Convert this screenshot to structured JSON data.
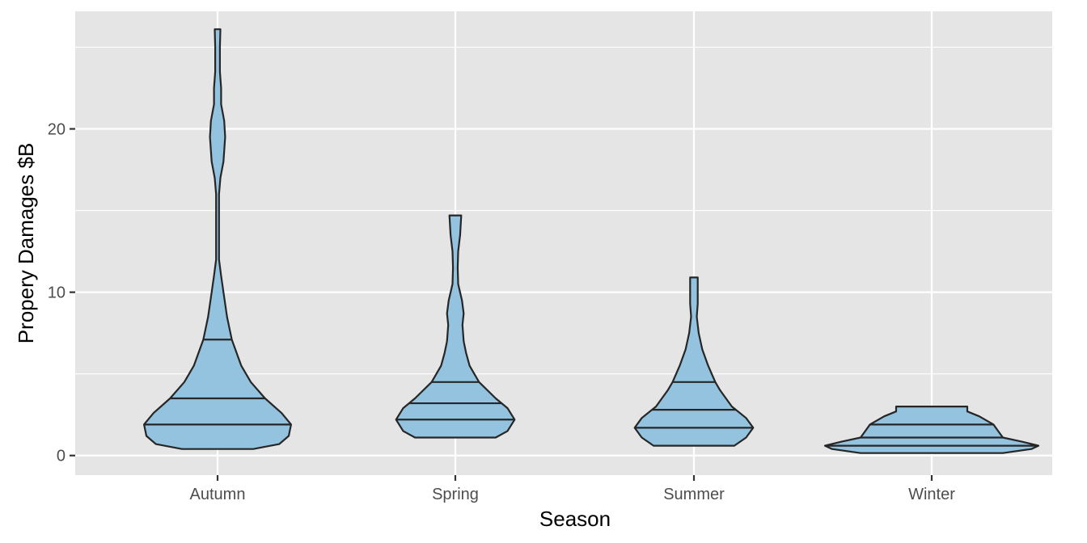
{
  "chart_data": {
    "type": "violin",
    "xlabel": "Season",
    "ylabel": "Propery Damages $B",
    "categories": [
      "Autumn",
      "Spring",
      "Summer",
      "Winter"
    ],
    "ylim": [
      -1.2,
      27.2
    ],
    "yticks": [
      0,
      10,
      20
    ],
    "grid": true,
    "legend": "none",
    "colors": {
      "fill": "#93c3df",
      "stroke": "#262626",
      "panel": "#e5e5e5",
      "grid": "#ffffff"
    },
    "violins": [
      {
        "category": "Autumn",
        "quantiles": [
          1.9,
          3.5,
          7.1
        ],
        "profile": [
          [
            0.4,
            0.15
          ],
          [
            0.7,
            0.26
          ],
          [
            1.2,
            0.3
          ],
          [
            1.9,
            0.31
          ],
          [
            2.6,
            0.27
          ],
          [
            3.5,
            0.2
          ],
          [
            4.5,
            0.14
          ],
          [
            5.5,
            0.1
          ],
          [
            7.1,
            0.06
          ],
          [
            8.5,
            0.04
          ],
          [
            10.0,
            0.025
          ],
          [
            11.0,
            0.015
          ],
          [
            12.0,
            0.006
          ],
          [
            16.0,
            0.006
          ],
          [
            17.0,
            0.012
          ],
          [
            18.0,
            0.025
          ],
          [
            19.5,
            0.032
          ],
          [
            20.5,
            0.028
          ],
          [
            21.5,
            0.015
          ],
          [
            22.5,
            0.015
          ],
          [
            23.5,
            0.01
          ],
          [
            25.0,
            0.01
          ],
          [
            26.1,
            0.012
          ]
        ]
      },
      {
        "category": "Spring",
        "quantiles": [
          2.2,
          3.2,
          4.5
        ],
        "profile": [
          [
            1.1,
            0.17
          ],
          [
            1.5,
            0.22
          ],
          [
            2.2,
            0.25
          ],
          [
            2.9,
            0.22
          ],
          [
            3.5,
            0.17
          ],
          [
            4.5,
            0.1
          ],
          [
            5.5,
            0.06
          ],
          [
            6.3,
            0.045
          ],
          [
            7.0,
            0.035
          ],
          [
            8.0,
            0.03
          ],
          [
            8.7,
            0.035
          ],
          [
            9.5,
            0.028
          ],
          [
            10.5,
            0.012
          ],
          [
            11.5,
            0.01
          ],
          [
            12.5,
            0.012
          ],
          [
            13.5,
            0.02
          ],
          [
            14.7,
            0.025
          ]
        ]
      },
      {
        "category": "Summer",
        "quantiles": [
          1.7,
          2.8,
          4.5
        ],
        "profile": [
          [
            0.6,
            0.17
          ],
          [
            1.1,
            0.22
          ],
          [
            1.7,
            0.25
          ],
          [
            2.3,
            0.22
          ],
          [
            3.0,
            0.16
          ],
          [
            4.0,
            0.11
          ],
          [
            4.5,
            0.09
          ],
          [
            5.5,
            0.06
          ],
          [
            6.5,
            0.035
          ],
          [
            7.5,
            0.02
          ],
          [
            8.5,
            0.012
          ],
          [
            9.3,
            0.016
          ],
          [
            10.0,
            0.016
          ],
          [
            10.9,
            0.016
          ]
        ]
      },
      {
        "category": "Winter",
        "quantiles": [
          0.6,
          1.1,
          1.9
        ],
        "profile": [
          [
            0.15,
            0.3
          ],
          [
            0.4,
            0.42
          ],
          [
            0.6,
            0.45
          ],
          [
            0.85,
            0.38
          ],
          [
            1.1,
            0.3
          ],
          [
            1.5,
            0.28
          ],
          [
            1.9,
            0.26
          ],
          [
            2.4,
            0.2
          ],
          [
            2.7,
            0.15
          ],
          [
            3.0,
            0.15
          ]
        ]
      }
    ]
  }
}
